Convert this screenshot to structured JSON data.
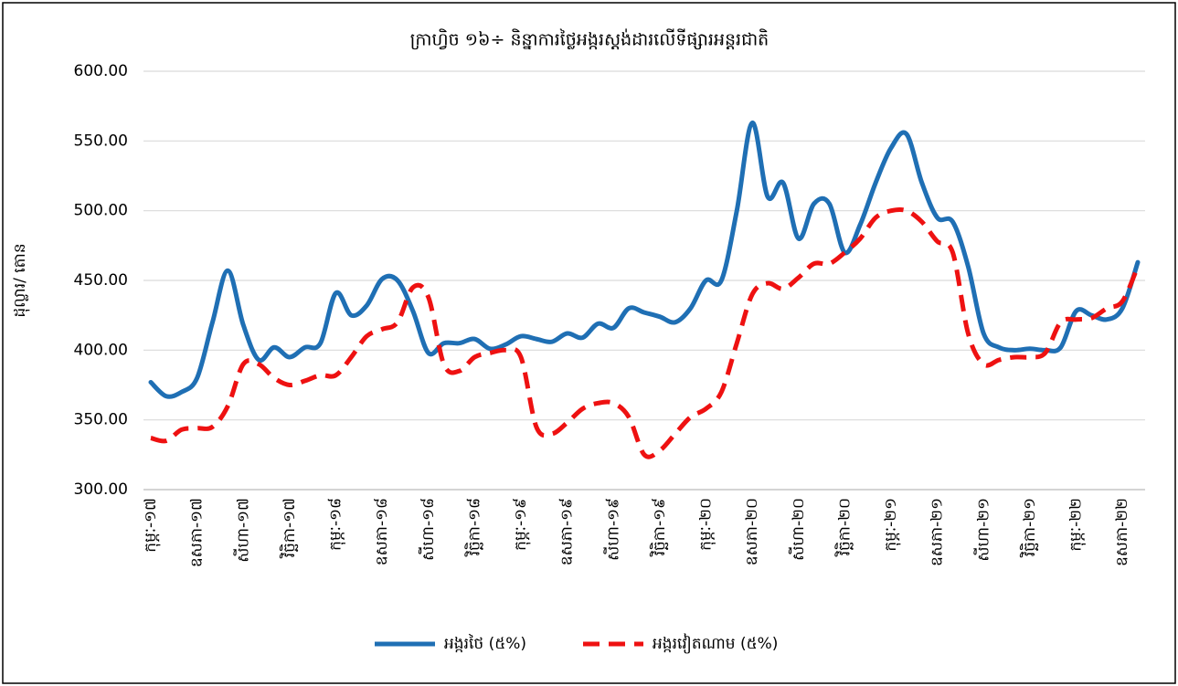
{
  "chart_data": {
    "type": "line",
    "title": "ក្រាហ្វិច ១៦÷ និន្នាការថ្លៃអង្ករស្តង់ដារលើទីផ្សារអន្តរជាតិ",
    "y_label": "ដុល្លារ/ តោន",
    "categories": [
      "កុម្ភៈ-១៧",
      null,
      null,
      "ឧសភា-១៧",
      null,
      null,
      "សីហា-១៧",
      null,
      null,
      "វិច្ឆិកា-១៧",
      null,
      null,
      "កុម្ភៈ-១៨",
      null,
      null,
      "ឧសភា-១៨",
      null,
      null,
      "សីហា-១៨",
      null,
      null,
      "វិច្ឆិកា-១៨",
      null,
      null,
      "កុម្ភៈ-១៩",
      null,
      null,
      "ឧសភា-១៩",
      null,
      null,
      "សីហា-១៩",
      null,
      null,
      "វិច្ឆិកា-១៩",
      null,
      null,
      "កុម្ភៈ-២០",
      null,
      null,
      "ឧសភា-២០",
      null,
      null,
      "សីហា-២០",
      null,
      null,
      "វិច្ឆិកា-២០",
      null,
      null,
      "កុម្ភៈ-២១",
      null,
      null,
      "ឧសភា-២១",
      null,
      null,
      "សីហា-២១",
      null,
      null,
      "វិច្ឆិកា-២១",
      null,
      null,
      "កុម្ភៈ-២២",
      null,
      null,
      "ឧសភា-២២",
      null
    ],
    "series": [
      {
        "name": "អង្ករថៃ (៥%)",
        "color": "#1f6fb4",
        "dash": false,
        "values": [
          377,
          367,
          370,
          380,
          420,
          457,
          418,
          393,
          402,
          395,
          402,
          405,
          441,
          425,
          432,
          451,
          450,
          428,
          398,
          405,
          405,
          408,
          401,
          404,
          410,
          408,
          406,
          412,
          409,
          419,
          416,
          430,
          427,
          424,
          420,
          430,
          450,
          450,
          500,
          563,
          510,
          520,
          480,
          505,
          505,
          470,
          490,
          520,
          545,
          555,
          520,
          495,
          492,
          460,
          412,
          402,
          400,
          401,
          400,
          402,
          428,
          425,
          422,
          430,
          463
        ]
      },
      {
        "name": "អង្ករវៀតណាម (៥%)",
        "color": "#ee1111",
        "dash": true,
        "values": [
          337,
          335,
          343,
          344,
          345,
          360,
          390,
          390,
          380,
          375,
          378,
          382,
          382,
          395,
          410,
          415,
          420,
          445,
          438,
          390,
          385,
          395,
          398,
          400,
          395,
          345,
          340,
          348,
          358,
          362,
          362,
          352,
          325,
          328,
          340,
          352,
          358,
          370,
          405,
          440,
          448,
          444,
          452,
          462,
          462,
          470,
          480,
          495,
          500,
          500,
          492,
          478,
          470,
          412,
          390,
          393,
          395,
          395,
          398,
          420,
          422,
          423,
          430,
          435,
          460
        ]
      }
    ],
    "ylim": [
      300,
      600
    ],
    "yticks": [
      {
        "value": 300,
        "label": "300.00"
      },
      {
        "value": 350,
        "label": "350.00"
      },
      {
        "value": 400,
        "label": "400.00"
      },
      {
        "value": 450,
        "label": "450.00"
      },
      {
        "value": 500,
        "label": "500.00"
      },
      {
        "value": 550,
        "label": "550.00"
      },
      {
        "value": 600,
        "label": "600.00"
      }
    ],
    "grid": true,
    "legend": "bottom"
  }
}
